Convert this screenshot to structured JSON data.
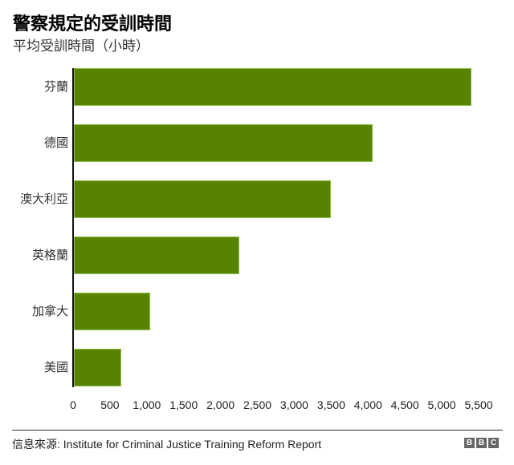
{
  "header": {
    "title": "警察規定的受訓時間",
    "subtitle": "平均受訓時間（小時）"
  },
  "chart_data": {
    "type": "bar",
    "orientation": "horizontal",
    "title": "警察規定的受訓時間",
    "subtitle": "平均受訓時間（小時）",
    "xlabel": "",
    "ylabel": "",
    "categories": [
      "芬蘭",
      "德國",
      "澳大利亞",
      "英格蘭",
      "加拿大",
      "美國"
    ],
    "values": [
      5400,
      4060,
      3500,
      2250,
      1050,
      650
    ],
    "xlim": [
      0,
      5500
    ],
    "x_ticks": [
      "0",
      "500",
      "1,000",
      "1,500",
      "2,000",
      "2,500",
      "3,000",
      "3,500",
      "4,000",
      "4,500",
      "5,000",
      "5,500"
    ],
    "x_tick_values": [
      0,
      500,
      1000,
      1500,
      2000,
      2500,
      3000,
      3500,
      4000,
      4500,
      5000,
      5500
    ],
    "grid": false,
    "legend": null,
    "bar_color": "#588300"
  },
  "footer": {
    "source": "信息來源: Institute for Criminal Justice Training Reform Report",
    "logo_letters": [
      "B",
      "B",
      "C"
    ]
  }
}
